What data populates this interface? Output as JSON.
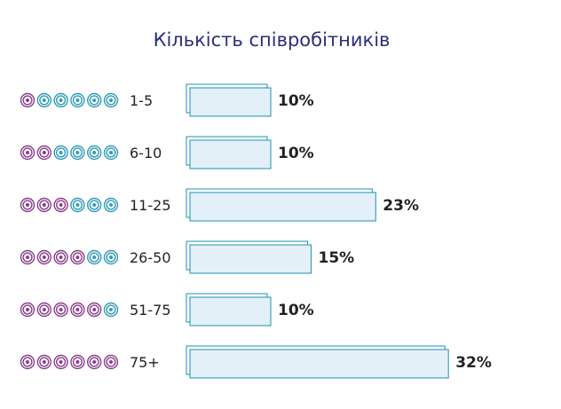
{
  "chart_data": {
    "type": "bar",
    "orientation": "horizontal",
    "title": "Кількість співробітників",
    "categories": [
      "1-5",
      "6-10",
      "11-25",
      "26-50",
      "51-75",
      "75+"
    ],
    "values": [
      10,
      10,
      23,
      15,
      10,
      32
    ],
    "value_labels": [
      "10%",
      "10%",
      "23%",
      "15%",
      "10%",
      "32%"
    ],
    "unit": "%",
    "icon_scale": {
      "total": 6,
      "filled": [
        1,
        2,
        3,
        4,
        5,
        6
      ]
    },
    "colors": {
      "title": "#2a2f7a",
      "bar_fill": "#e3f0f8",
      "bar_stroke": "#2f9bb8",
      "icon_filled": "#8a3d8e",
      "icon_empty": "#2f9bb8",
      "label": "#222222"
    }
  }
}
